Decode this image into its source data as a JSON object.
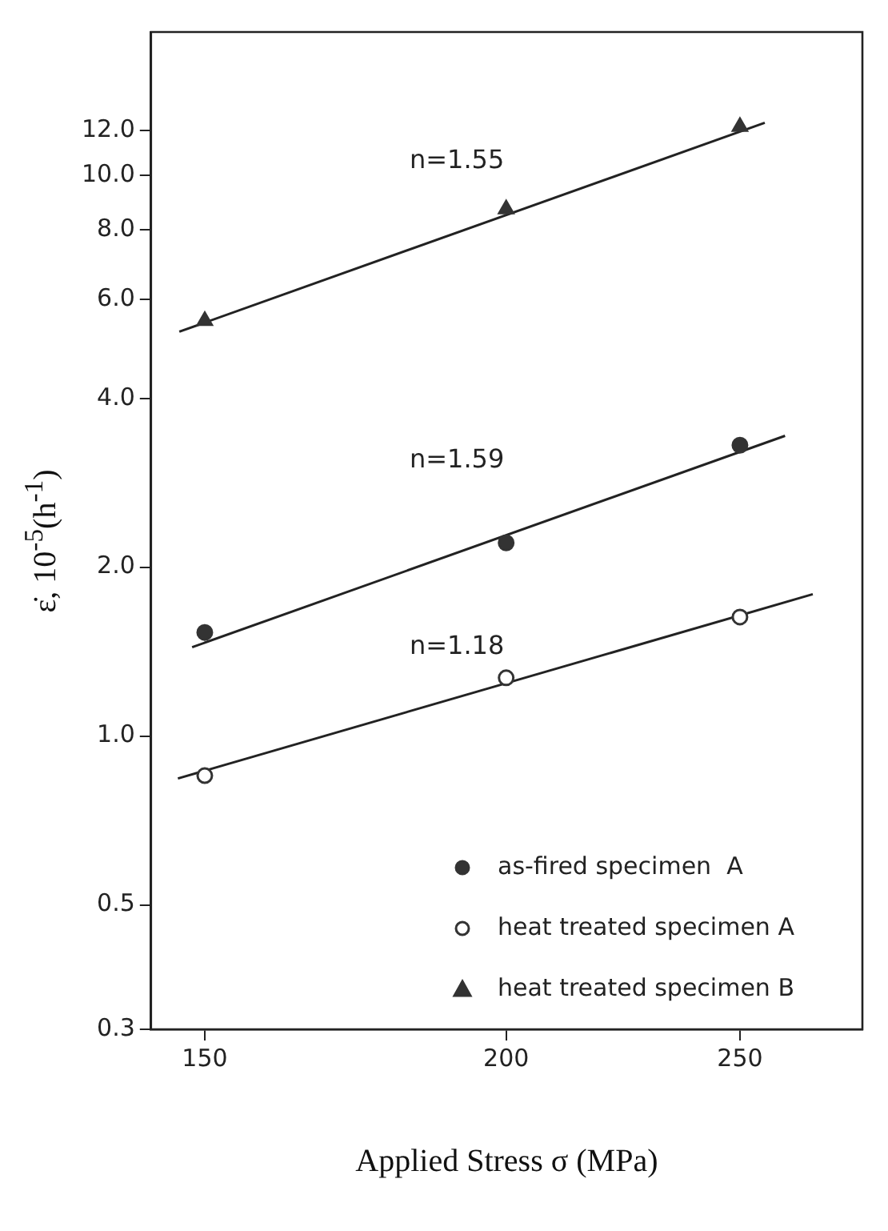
{
  "chart_data": {
    "type": "scatter",
    "xlabel": "Applied Stress σ (MPa)",
    "ylabel": "ε̇, 10$^{-5}$(h$^{-1}$)",
    "log": "xy",
    "grid": false,
    "legend": "bottom right",
    "xlim": [
      142.5,
      281
    ],
    "xticks": [
      150,
      200,
      250
    ],
    "ylim": [
      0.3,
      18
    ],
    "yticks": [
      {
        "value": 0.3,
        "label": "0.3"
      },
      {
        "value": 0.5,
        "label": "0.5"
      },
      {
        "value": 1,
        "label": "1.0"
      },
      {
        "value": 2,
        "label": "2.0"
      },
      {
        "value": 4,
        "label": "4.0"
      },
      {
        "value": 6,
        "label": "6.0"
      },
      {
        "value": 8,
        "label": "8.0"
      },
      {
        "value": 10,
        "label": "10.0"
      },
      {
        "value": 12,
        "label": "12.0"
      }
    ],
    "series": [
      {
        "name": "as-fired specimen  A",
        "marker": "circle",
        "color": "#333333",
        "x": [
          150,
          200,
          250
        ],
        "values": [
          1.53,
          2.21,
          3.3
        ]
      },
      {
        "name": "heat treated specimen A",
        "marker": "circle",
        "color": "#ffffff",
        "x": [
          150,
          200,
          250
        ],
        "values": [
          0.85,
          1.27,
          1.63
        ]
      },
      {
        "name": "heat treated specimen B",
        "marker": "triangle",
        "color": "#333333",
        "x": [
          150,
          200,
          250
        ],
        "values": [
          5.5,
          8.7,
          12.2
        ]
      },
      {
        "type": "line",
        "marker": "none",
        "color": "#222222",
        "x": [
          148.2,
          261
        ],
        "values": [
          1.44,
          3.43
        ]
      },
      {
        "type": "line",
        "marker": "none",
        "color": "#222222",
        "x": [
          146.2,
          268
        ],
        "values": [
          0.84,
          1.79
        ]
      },
      {
        "type": "line",
        "marker": "none",
        "color": "#222222",
        "x": [
          146.4,
          256
        ],
        "values": [
          5.26,
          12.4
        ]
      }
    ],
    "annotations": [
      "n=1.55",
      "n=1.59",
      "n=1.18"
    ]
  }
}
